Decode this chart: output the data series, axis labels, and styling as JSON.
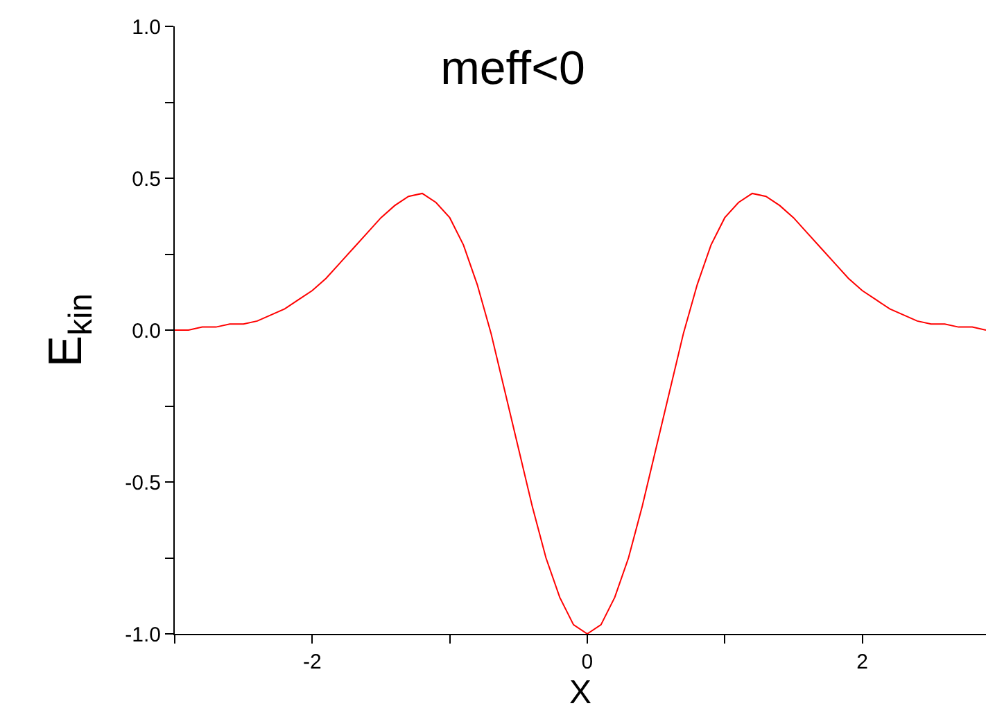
{
  "chart_data": {
    "type": "line",
    "title": "meff<0",
    "xlabel": "X",
    "ylabel": "E$_{kin}$",
    "xlim": [
      -3,
      2.9
    ],
    "ylim": [
      -1.0,
      1.0
    ],
    "xticks": [
      {
        "value": -3,
        "label": null
      },
      -2,
      {
        "value": -1,
        "label": null
      },
      0,
      {
        "value": 1,
        "label": null
      },
      2
    ],
    "yticks": [
      {
        "value": -1.0,
        "label": "-1.0"
      },
      {
        "value": -0.75,
        "label": null
      },
      {
        "value": -0.5,
        "label": "-0.5"
      },
      {
        "value": -0.25,
        "label": null
      },
      {
        "value": 0.0,
        "label": "0.0"
      },
      {
        "value": 0.25,
        "label": null
      },
      {
        "value": 0.5,
        "label": "0.5"
      },
      {
        "value": 0.75,
        "label": null
      },
      {
        "value": 1.0,
        "label": "1.0"
      }
    ],
    "marker": "none",
    "line_style": "solid",
    "x": [
      -3.0,
      -2.9,
      -2.8,
      -2.7,
      -2.6,
      -2.5,
      -2.4,
      -2.3,
      -2.2,
      -2.1,
      -2.0,
      -1.9,
      -1.8,
      -1.7,
      -1.6,
      -1.5,
      -1.4,
      -1.3,
      -1.2,
      -1.1,
      -1.0,
      -0.9,
      -0.8,
      -0.7,
      -0.6,
      -0.5,
      -0.4,
      -0.3,
      -0.2,
      -0.1,
      0.0,
      0.1,
      0.2,
      0.3,
      0.4,
      0.5,
      0.6,
      0.7,
      0.8,
      0.9,
      1.0,
      1.1,
      1.2,
      1.3,
      1.4,
      1.5,
      1.6,
      1.7,
      1.8,
      1.9,
      2.0,
      2.1,
      2.2,
      2.3,
      2.4,
      2.5,
      2.6,
      2.7,
      2.8,
      2.9
    ],
    "series": [
      {
        "color": "#ff0000",
        "values": [
          0.0,
          0.0,
          0.01,
          0.01,
          0.02,
          0.02,
          0.03,
          0.05,
          0.07,
          0.1,
          0.13,
          0.17,
          0.22,
          0.27,
          0.32,
          0.37,
          0.41,
          0.44,
          0.45,
          0.42,
          0.37,
          0.28,
          0.15,
          -0.01,
          -0.2,
          -0.39,
          -0.58,
          -0.75,
          -0.88,
          -0.97,
          -1.0,
          -0.97,
          -0.88,
          -0.75,
          -0.58,
          -0.39,
          -0.2,
          -0.01,
          0.15,
          0.28,
          0.37,
          0.42,
          0.45,
          0.44,
          0.41,
          0.37,
          0.32,
          0.27,
          0.22,
          0.17,
          0.13,
          0.1,
          0.07,
          0.05,
          0.03,
          0.02,
          0.02,
          0.01,
          0.01,
          0.0
        ]
      }
    ]
  }
}
